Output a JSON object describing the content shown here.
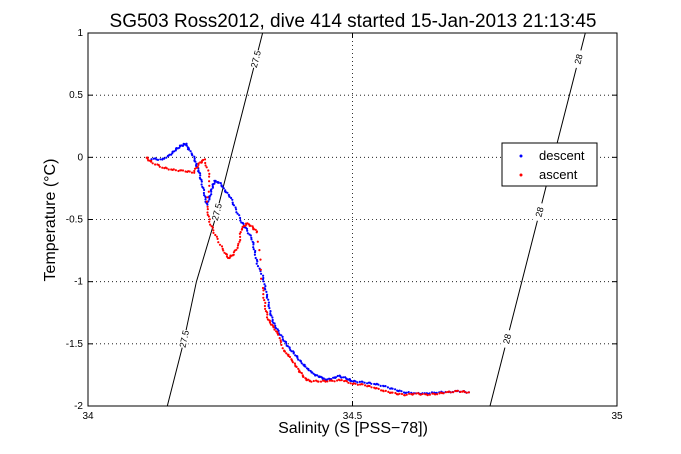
{
  "chart_data": {
    "type": "scatter",
    "title": "SG503 Ross2012, dive 414 started 15-Jan-2013 21:13:45",
    "xlabel": "Salinity (S [PSS−78])",
    "ylabel": "Temperature (°C)",
    "xlim": [
      34,
      35
    ],
    "ylim": [
      -2,
      1
    ],
    "xticks": [
      "34",
      "34.5",
      "35"
    ],
    "yticks": [
      "-2",
      "-1.5",
      "-1",
      "-0.5",
      "0",
      "0.5",
      "1"
    ],
    "grid": true,
    "legend_position": "right",
    "series": [
      {
        "name": "descent",
        "color": "#0000ff",
        "points": [
          [
            34.12,
            -0.01
          ],
          [
            34.14,
            -0.02
          ],
          [
            34.155,
            0.02
          ],
          [
            34.165,
            0.06
          ],
          [
            34.175,
            0.09
          ],
          [
            34.185,
            0.11
          ],
          [
            34.19,
            0.07
          ],
          [
            34.2,
            0.0
          ],
          [
            34.205,
            -0.06
          ],
          [
            34.21,
            -0.12
          ],
          [
            34.215,
            -0.2
          ],
          [
            34.22,
            -0.3
          ],
          [
            34.225,
            -0.38
          ],
          [
            34.23,
            -0.32
          ],
          [
            34.235,
            -0.24
          ],
          [
            34.24,
            -0.19
          ],
          [
            34.25,
            -0.21
          ],
          [
            34.26,
            -0.27
          ],
          [
            34.27,
            -0.33
          ],
          [
            34.28,
            -0.42
          ],
          [
            34.29,
            -0.52
          ],
          [
            34.3,
            -0.58
          ],
          [
            34.31,
            -0.66
          ],
          [
            34.315,
            -0.75
          ],
          [
            34.32,
            -0.86
          ],
          [
            34.33,
            -0.95
          ],
          [
            34.335,
            -1.05
          ],
          [
            34.34,
            -1.15
          ],
          [
            34.345,
            -1.25
          ],
          [
            34.35,
            -1.33
          ],
          [
            34.36,
            -1.4
          ],
          [
            34.37,
            -1.47
          ],
          [
            34.38,
            -1.53
          ],
          [
            34.39,
            -1.58
          ],
          [
            34.4,
            -1.63
          ],
          [
            34.41,
            -1.68
          ],
          [
            34.42,
            -1.72
          ],
          [
            34.43,
            -1.75
          ],
          [
            34.44,
            -1.77
          ],
          [
            34.45,
            -1.79
          ],
          [
            34.46,
            -1.78
          ],
          [
            34.475,
            -1.76
          ],
          [
            34.49,
            -1.78
          ],
          [
            34.5,
            -1.8
          ],
          [
            34.52,
            -1.81
          ],
          [
            34.54,
            -1.82
          ],
          [
            34.56,
            -1.84
          ],
          [
            34.58,
            -1.87
          ],
          [
            34.6,
            -1.89
          ],
          [
            34.62,
            -1.9
          ],
          [
            34.64,
            -1.9
          ],
          [
            34.66,
            -1.89
          ],
          [
            34.68,
            -1.89
          ],
          [
            34.7,
            -1.88
          ],
          [
            34.72,
            -1.89
          ]
        ]
      },
      {
        "name": "ascent",
        "color": "#ff0000",
        "points": [
          [
            34.11,
            0.0
          ],
          [
            34.12,
            -0.04
          ],
          [
            34.14,
            -0.08
          ],
          [
            34.16,
            -0.1
          ],
          [
            34.18,
            -0.11
          ],
          [
            34.2,
            -0.12
          ],
          [
            34.21,
            -0.05
          ],
          [
            34.22,
            -0.02
          ],
          [
            34.23,
            -0.15
          ],
          [
            34.225,
            -0.4
          ],
          [
            34.23,
            -0.52
          ],
          [
            34.24,
            -0.62
          ],
          [
            34.255,
            -0.74
          ],
          [
            34.265,
            -0.81
          ],
          [
            34.275,
            -0.78
          ],
          [
            34.285,
            -0.7
          ],
          [
            34.29,
            -0.58
          ],
          [
            34.3,
            -0.53
          ],
          [
            34.31,
            -0.56
          ],
          [
            34.32,
            -0.6
          ],
          [
            34.33,
            -1.05
          ],
          [
            34.335,
            -1.2
          ],
          [
            34.34,
            -1.3
          ],
          [
            34.35,
            -1.36
          ],
          [
            34.36,
            -1.43
          ],
          [
            34.37,
            -1.55
          ],
          [
            34.38,
            -1.6
          ],
          [
            34.39,
            -1.66
          ],
          [
            34.4,
            -1.72
          ],
          [
            34.41,
            -1.78
          ],
          [
            34.42,
            -1.8
          ],
          [
            34.44,
            -1.8
          ],
          [
            34.46,
            -1.8
          ],
          [
            34.48,
            -1.79
          ],
          [
            34.5,
            -1.82
          ],
          [
            34.52,
            -1.83
          ],
          [
            34.54,
            -1.85
          ],
          [
            34.56,
            -1.88
          ],
          [
            34.58,
            -1.9
          ],
          [
            34.6,
            -1.91
          ],
          [
            34.62,
            -1.9
          ],
          [
            34.64,
            -1.91
          ],
          [
            34.66,
            -1.9
          ],
          [
            34.68,
            -1.89
          ],
          [
            34.7,
            -1.88
          ],
          [
            34.72,
            -1.89
          ]
        ]
      }
    ],
    "isopycnals": [
      {
        "label": "27.5",
        "color": "#000000",
        "points": [
          [
            34.15,
            -2.0
          ],
          [
            34.18,
            -1.5
          ],
          [
            34.205,
            -1.0
          ],
          [
            34.24,
            -0.5
          ],
          [
            34.27,
            0.0
          ],
          [
            34.3,
            0.5
          ],
          [
            34.33,
            1.0
          ]
        ]
      },
      {
        "label": "28",
        "color": "#000000",
        "points": [
          [
            34.76,
            -2.0
          ],
          [
            34.79,
            -1.5
          ],
          [
            34.82,
            -1.0
          ],
          [
            34.85,
            -0.5
          ],
          [
            34.88,
            0.0
          ],
          [
            34.91,
            0.5
          ],
          [
            34.94,
            1.0
          ]
        ]
      }
    ]
  }
}
